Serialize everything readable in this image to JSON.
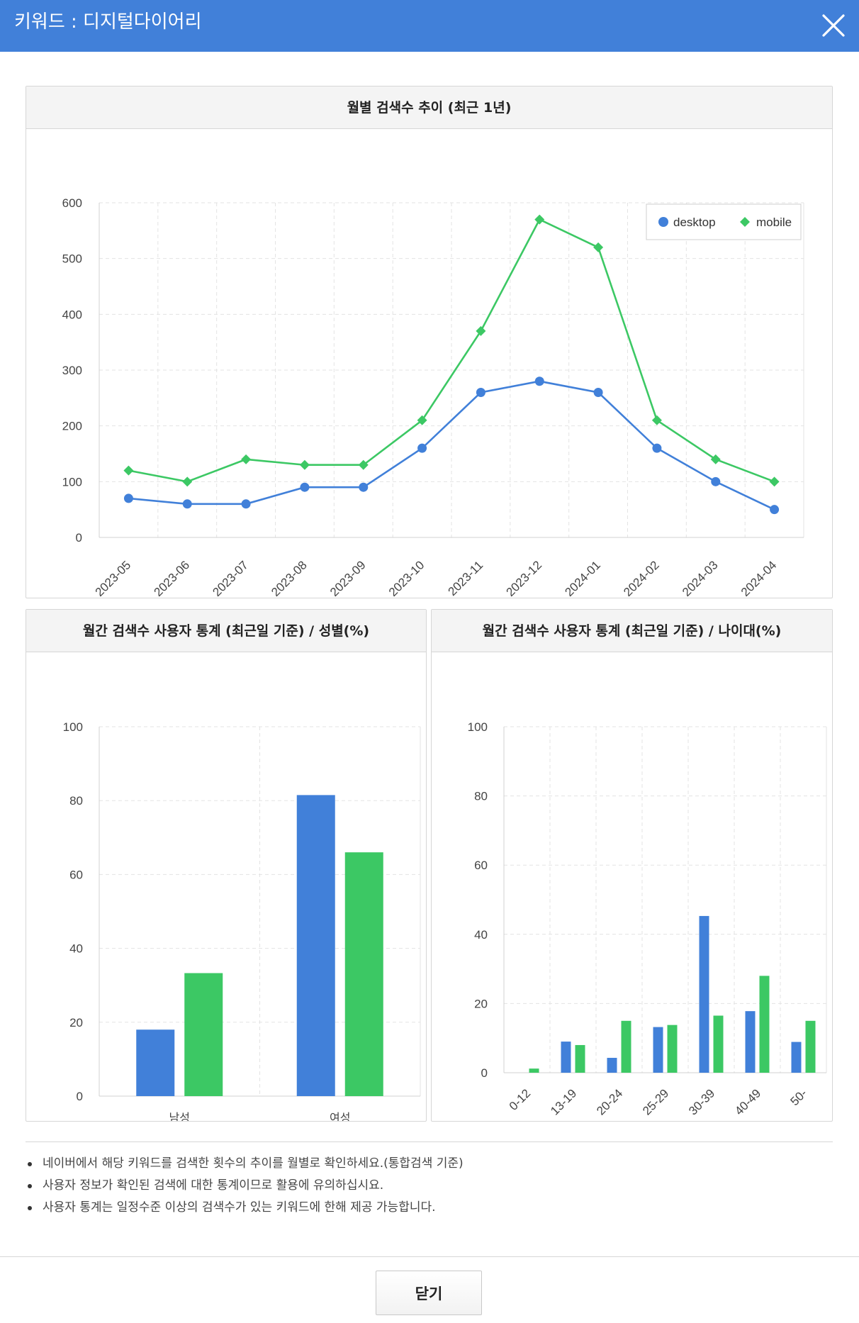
{
  "header": {
    "title": "키워드 : 디지털다이어리"
  },
  "colors": {
    "desktop": "#4180d9",
    "mobile": "#3cc864",
    "header": "#4180d9"
  },
  "chart_data": [
    {
      "type": "line",
      "title": "월별 검색수 추이 (최근 1년)",
      "x": [
        "2023-05",
        "2023-06",
        "2023-07",
        "2023-08",
        "2023-09",
        "2023-10",
        "2023-11",
        "2023-12",
        "2024-01",
        "2024-02",
        "2024-03",
        "2024-04"
      ],
      "ylim": [
        0,
        600
      ],
      "yticks": [
        0,
        100,
        200,
        300,
        400,
        500,
        600
      ],
      "grid": true,
      "legend_position": "top-right",
      "series": [
        {
          "name": "desktop",
          "color": "#4180d9",
          "marker": "circle",
          "values": [
            70,
            60,
            60,
            90,
            90,
            160,
            260,
            280,
            260,
            160,
            100,
            50
          ]
        },
        {
          "name": "mobile",
          "color": "#3cc864",
          "marker": "diamond",
          "values": [
            120,
            100,
            140,
            130,
            130,
            210,
            370,
            570,
            520,
            210,
            140,
            100
          ]
        }
      ]
    },
    {
      "type": "bar",
      "title": "월간 검색수 사용자 통계 (최근일 기준) / 성별(%)",
      "categories": [
        "남성",
        "여성"
      ],
      "ylim": [
        0,
        100
      ],
      "yticks": [
        0,
        20,
        40,
        60,
        80,
        100
      ],
      "grid": true,
      "series": [
        {
          "color": "#4180d9",
          "values": [
            18,
            81.5
          ]
        },
        {
          "color": "#3cc864",
          "values": [
            33.3,
            66
          ]
        }
      ]
    },
    {
      "type": "bar",
      "title": "월간 검색수 사용자 통계 (최근일 기준) / 나이대(%)",
      "categories": [
        "0-12",
        "13-19",
        "20-24",
        "25-29",
        "30-39",
        "40-49",
        "50-"
      ],
      "ylim": [
        0,
        100
      ],
      "yticks": [
        0,
        20,
        40,
        60,
        80,
        100
      ],
      "grid": true,
      "series": [
        {
          "color": "#4180d9",
          "values": [
            0,
            9,
            4.3,
            13.2,
            45.3,
            17.8,
            8.9
          ]
        },
        {
          "color": "#3cc864",
          "values": [
            1.2,
            8,
            15,
            13.8,
            16.5,
            28,
            15
          ]
        }
      ]
    }
  ],
  "notes": [
    "네이버에서 해당 키워드를 검색한 횟수의 추이를 월별로 확인하세요.(통합검색 기준)",
    "사용자 정보가 확인된 검색에 대한 통계이므로 활용에 유의하십시요.",
    "사용자 통계는 일정수준 이상의 검색수가 있는 키워드에 한해 제공 가능합니다."
  ],
  "footer": {
    "close_label": "닫기"
  }
}
